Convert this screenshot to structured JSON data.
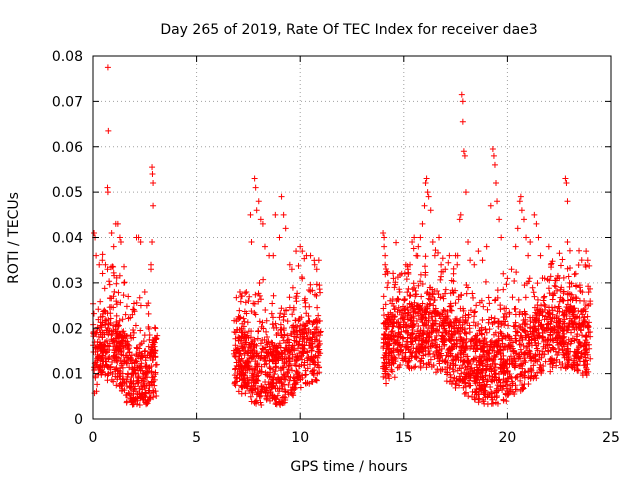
{
  "chart_data": {
    "type": "scatter",
    "title": "Day 265 of 2019, Rate Of TEC Index for receiver dae3",
    "xlabel": "GPS time / hours",
    "ylabel": "ROTI / TECUs",
    "xlim": [
      0,
      25
    ],
    "ylim": [
      0,
      0.08
    ],
    "xticks": [
      0,
      5,
      10,
      15,
      20,
      25
    ],
    "xtick_labels": [
      "0",
      "5",
      "10",
      "15",
      "20",
      "25"
    ],
    "yticks": [
      0,
      0.01,
      0.02,
      0.03,
      0.04,
      0.05,
      0.06,
      0.07,
      0.08
    ],
    "ytick_labels": [
      "0",
      "0.01",
      "0.02",
      "0.03",
      "0.04",
      "0.05",
      "0.06",
      "0.07",
      "0.08"
    ],
    "grid": true,
    "marker": "+",
    "color": "#ff0000",
    "coverage_hours": [
      [
        0,
        3.1
      ],
      [
        6.8,
        11.0
      ],
      [
        14.0,
        24.0
      ]
    ],
    "series": [
      {
        "name": "ROTI",
        "points": [
          [
            0.05,
            0.041
          ],
          [
            0.1,
            0.04
          ],
          [
            0.15,
            0.036
          ],
          [
            0.3,
            0.034
          ],
          [
            0.45,
            0.035
          ],
          [
            0.6,
            0.034
          ],
          [
            0.7,
            0.033
          ],
          [
            0.72,
            0.0775
          ],
          [
            0.74,
            0.0635
          ],
          [
            0.7,
            0.051
          ],
          [
            0.72,
            0.05
          ],
          [
            0.9,
            0.041
          ],
          [
            1.0,
            0.038
          ],
          [
            1.1,
            0.043
          ],
          [
            1.2,
            0.043
          ],
          [
            1.3,
            0.04
          ],
          [
            1.35,
            0.039
          ],
          [
            1.5,
            0.03
          ],
          [
            1.7,
            0.027
          ],
          [
            1.9,
            0.023
          ],
          [
            2.1,
            0.04
          ],
          [
            2.2,
            0.04
          ],
          [
            2.3,
            0.039
          ],
          [
            2.5,
            0.028
          ],
          [
            2.6,
            0.025
          ],
          [
            2.85,
            0.0555
          ],
          [
            2.87,
            0.054
          ],
          [
            2.9,
            0.052
          ],
          [
            2.9,
            0.047
          ],
          [
            2.85,
            0.039
          ],
          [
            2.8,
            0.034
          ],
          [
            2.8,
            0.033
          ],
          [
            7.0,
            0.022
          ],
          [
            7.2,
            0.021
          ],
          [
            7.4,
            0.028
          ],
          [
            7.5,
            0.026
          ],
          [
            7.6,
            0.045
          ],
          [
            7.65,
            0.039
          ],
          [
            7.8,
            0.053
          ],
          [
            7.85,
            0.051
          ],
          [
            7.9,
            0.046
          ],
          [
            8.0,
            0.048
          ],
          [
            8.1,
            0.044
          ],
          [
            8.2,
            0.043
          ],
          [
            8.3,
            0.038
          ],
          [
            8.5,
            0.036
          ],
          [
            8.7,
            0.036
          ],
          [
            8.8,
            0.045
          ],
          [
            9.0,
            0.04
          ],
          [
            9.1,
            0.049
          ],
          [
            9.2,
            0.045
          ],
          [
            9.3,
            0.042
          ],
          [
            9.5,
            0.034
          ],
          [
            9.6,
            0.033
          ],
          [
            9.8,
            0.037
          ],
          [
            10.0,
            0.038
          ],
          [
            10.1,
            0.037
          ],
          [
            10.3,
            0.036
          ],
          [
            10.5,
            0.036
          ],
          [
            10.7,
            0.034
          ],
          [
            10.8,
            0.033
          ],
          [
            10.9,
            0.035
          ],
          [
            14.0,
            0.041
          ],
          [
            14.05,
            0.04
          ],
          [
            14.05,
            0.038
          ],
          [
            14.1,
            0.036
          ],
          [
            14.1,
            0.034
          ],
          [
            14.2,
            0.029
          ],
          [
            14.5,
            0.031
          ],
          [
            14.8,
            0.028
          ],
          [
            14.9,
            0.032
          ],
          [
            15.1,
            0.034
          ],
          [
            15.2,
            0.033
          ],
          [
            15.3,
            0.034
          ],
          [
            15.4,
            0.039
          ],
          [
            15.5,
            0.04
          ],
          [
            15.6,
            0.036
          ],
          [
            15.7,
            0.038
          ],
          [
            15.8,
            0.04
          ],
          [
            15.9,
            0.043
          ],
          [
            16.0,
            0.047
          ],
          [
            16.05,
            0.052
          ],
          [
            16.1,
            0.053
          ],
          [
            16.15,
            0.05
          ],
          [
            16.2,
            0.049
          ],
          [
            16.3,
            0.046
          ],
          [
            16.4,
            0.039
          ],
          [
            16.5,
            0.036
          ],
          [
            16.7,
            0.04
          ],
          [
            16.8,
            0.034
          ],
          [
            17.0,
            0.033
          ],
          [
            17.2,
            0.036
          ],
          [
            17.4,
            0.032
          ],
          [
            17.5,
            0.036
          ],
          [
            17.6,
            0.036
          ],
          [
            17.7,
            0.044
          ],
          [
            17.75,
            0.045
          ],
          [
            17.8,
            0.0715
          ],
          [
            17.85,
            0.07
          ],
          [
            17.85,
            0.0655
          ],
          [
            17.9,
            0.059
          ],
          [
            17.95,
            0.058
          ],
          [
            18.0,
            0.05
          ],
          [
            18.1,
            0.039
          ],
          [
            18.2,
            0.035
          ],
          [
            18.4,
            0.034
          ],
          [
            18.6,
            0.037
          ],
          [
            18.8,
            0.035
          ],
          [
            19.0,
            0.038
          ],
          [
            19.2,
            0.047
          ],
          [
            19.3,
            0.0595
          ],
          [
            19.35,
            0.058
          ],
          [
            19.4,
            0.056
          ],
          [
            19.45,
            0.052
          ],
          [
            19.5,
            0.048
          ],
          [
            19.6,
            0.044
          ],
          [
            19.7,
            0.04
          ],
          [
            19.8,
            0.032
          ],
          [
            20.0,
            0.031
          ],
          [
            20.2,
            0.033
          ],
          [
            20.4,
            0.038
          ],
          [
            20.5,
            0.042
          ],
          [
            20.6,
            0.048
          ],
          [
            20.65,
            0.049
          ],
          [
            20.7,
            0.046
          ],
          [
            20.8,
            0.044
          ],
          [
            20.9,
            0.04
          ],
          [
            21.0,
            0.036
          ],
          [
            21.1,
            0.039
          ],
          [
            21.3,
            0.045
          ],
          [
            21.4,
            0.043
          ],
          [
            21.5,
            0.04
          ],
          [
            21.6,
            0.036
          ],
          [
            21.8,
            0.031
          ],
          [
            22.0,
            0.038
          ],
          [
            22.1,
            0.034
          ],
          [
            22.4,
            0.031
          ],
          [
            22.6,
            0.029
          ],
          [
            22.8,
            0.053
          ],
          [
            22.85,
            0.052
          ],
          [
            22.9,
            0.048
          ],
          [
            22.9,
            0.039
          ],
          [
            23.0,
            0.03
          ],
          [
            23.3,
            0.032
          ],
          [
            23.5,
            0.029
          ],
          [
            23.7,
            0.026
          ],
          [
            23.8,
            0.037
          ],
          [
            23.9,
            0.025
          ]
        ]
      }
    ]
  }
}
